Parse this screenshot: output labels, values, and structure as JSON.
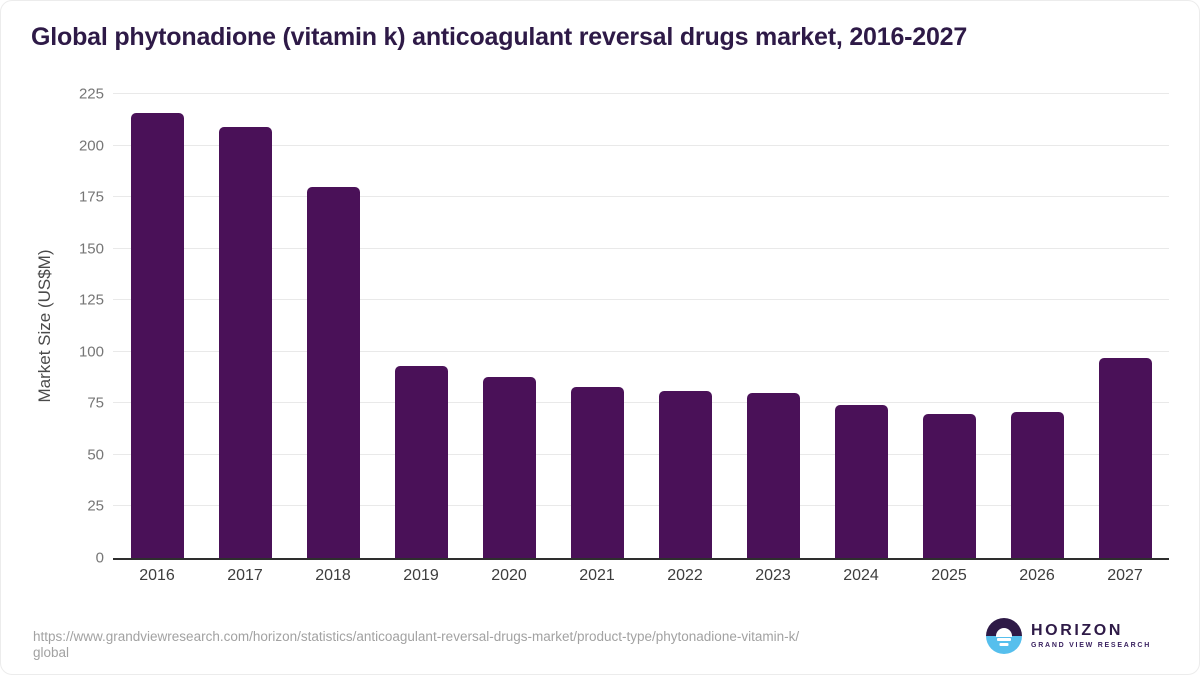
{
  "title": "Global phytonadione (vitamin k) anticoagulant reversal drugs market, 2016-2027",
  "chart_data": {
    "type": "bar",
    "title": "Global phytonadione (vitamin k) anticoagulant reversal drugs market, 2016-2027",
    "categories": [
      "2016",
      "2017",
      "2018",
      "2019",
      "2020",
      "2021",
      "2022",
      "2023",
      "2024",
      "2025",
      "2026",
      "2027"
    ],
    "values": [
      216,
      209,
      180,
      93,
      88,
      83,
      81,
      80,
      74,
      70,
      71,
      97
    ],
    "xlabel": "",
    "ylabel": "Market Size (US$M)",
    "ylim": [
      0,
      225
    ],
    "yticks": [
      0,
      25,
      50,
      75,
      100,
      125,
      150,
      175,
      200,
      225
    ],
    "grid": "horizontal",
    "legend": "none",
    "bar_color": "#4a1158"
  },
  "colors": {
    "bar": "#4a1158",
    "title_text": "#2e1a47",
    "logo_purple": "#2e1a47",
    "logo_blue": "#56bfed",
    "gridline": "#e9e9e9",
    "axis_line": "#2e2e2e"
  },
  "footer": {
    "source_url_line1": "https://www.grandviewresearch.com/horizon/statistics/anticoagulant-reversal-drugs-market/product-type/phytonadione-vitamin-k/",
    "source_url_line2": "global",
    "logo": {
      "name": "HORIZON",
      "subtitle": "GRAND VIEW RESEARCH"
    }
  }
}
